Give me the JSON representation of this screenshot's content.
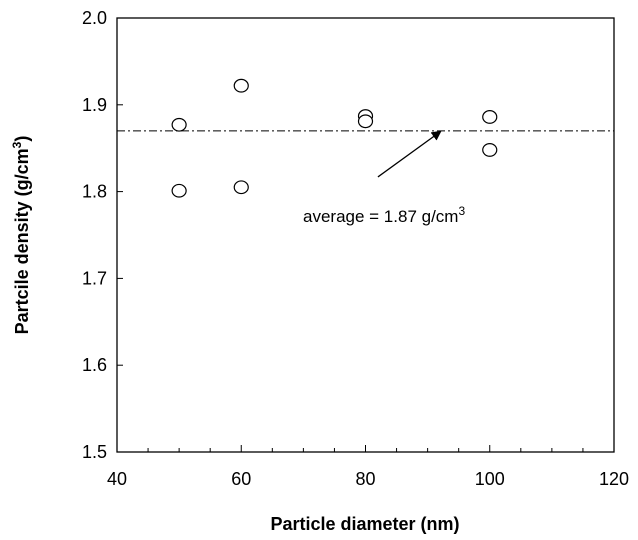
{
  "chart_data": {
    "type": "scatter",
    "title": "",
    "xlabel": "Particle diameter  (nm)",
    "ylabel_main": "Partcile density  (g/cm",
    "ylabel_sup": "3",
    "ylabel_close": ")",
    "xlim": [
      40,
      120
    ],
    "ylim": [
      1.5,
      2.0
    ],
    "x_ticks": [
      40,
      60,
      80,
      100,
      120
    ],
    "y_ticks": [
      1.5,
      1.6,
      1.7,
      1.8,
      1.9,
      2.0
    ],
    "x_tick_labels": [
      "40",
      "60",
      "80",
      "100",
      "120"
    ],
    "y_tick_labels": [
      "1.5",
      "1.6",
      "1.7",
      "1.8",
      "1.9",
      "2.0"
    ],
    "grid": false,
    "series": [
      {
        "marker": "open-circle",
        "points": [
          {
            "x": 50,
            "y": 1.877
          },
          {
            "x": 50,
            "y": 1.801
          },
          {
            "x": 60,
            "y": 1.922
          },
          {
            "x": 60,
            "y": 1.805
          },
          {
            "x": 80,
            "y": 1.887
          },
          {
            "x": 80,
            "y": 1.881
          },
          {
            "x": 100,
            "y": 1.886
          },
          {
            "x": 100,
            "y": 1.848
          }
        ]
      }
    ],
    "reference_line": {
      "y": 1.87,
      "style": "dash-dot"
    },
    "annotation": {
      "text_main": "average = 1.87 g/cm",
      "text_sup": "3",
      "arrow_tip": {
        "x": 92,
        "y": 1.87
      },
      "arrow_tail": {
        "x": 82,
        "y": 1.81
      }
    }
  }
}
